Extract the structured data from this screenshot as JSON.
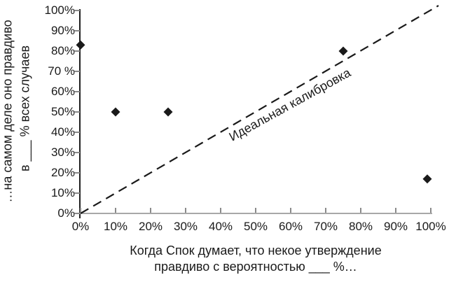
{
  "colors": {
    "background": "#ffffff",
    "text": "#1a1a1a",
    "y_axis_line": "#1f1f1f",
    "x_axis_line": "#a8a8a8",
    "tick_mark": "#8a8a8a",
    "reference_line": "#1a1a1a",
    "point": "#1a1a1a"
  },
  "labels": {
    "y_title_line1": "…на самом деле оно правдиво",
    "y_title_line2": "в ___ % всех случаев",
    "x_caption_line1": "Когда Спок думает, что некое утверждение",
    "x_caption_line2": "правдиво с вероятностью ___ %…",
    "reference_line_label": "Идеальная калибровка"
  },
  "chart_data": {
    "type": "scatter",
    "title": "",
    "xlabel": "Когда Спок думает, что некое утверждение правдиво с вероятностью ___ %…",
    "ylabel": "…на самом деле оно правдиво в ___ % всех случаев",
    "xlim": [
      0,
      100
    ],
    "ylim": [
      0,
      100
    ],
    "grid": false,
    "legend": "none",
    "x_ticks": [
      0,
      10,
      20,
      30,
      40,
      50,
      60,
      70,
      80,
      90,
      100
    ],
    "x_tick_labels": [
      "0%",
      "10%",
      "20%",
      "30%",
      "40%",
      "50%",
      "60%",
      "70%",
      "80%",
      "90%",
      "100%"
    ],
    "y_ticks": [
      0,
      10,
      20,
      30,
      40,
      50,
      60,
      70,
      80,
      90,
      100
    ],
    "y_tick_labels": [
      "0%",
      "10%",
      "20%",
      "30%",
      "40%",
      "50%",
      "60%",
      "70 %",
      "80%",
      "90%",
      "100%"
    ],
    "series": [
      {
        "marker": "diamond",
        "points": [
          [
            0,
            83
          ],
          [
            10,
            50
          ],
          [
            25,
            50
          ],
          [
            75,
            80
          ],
          [
            99,
            17
          ]
        ]
      }
    ],
    "reference_line": {
      "label": "Идеальная калибровка",
      "from": [
        0,
        0
      ],
      "to": [
        100,
        100
      ],
      "style": "dashed"
    }
  }
}
